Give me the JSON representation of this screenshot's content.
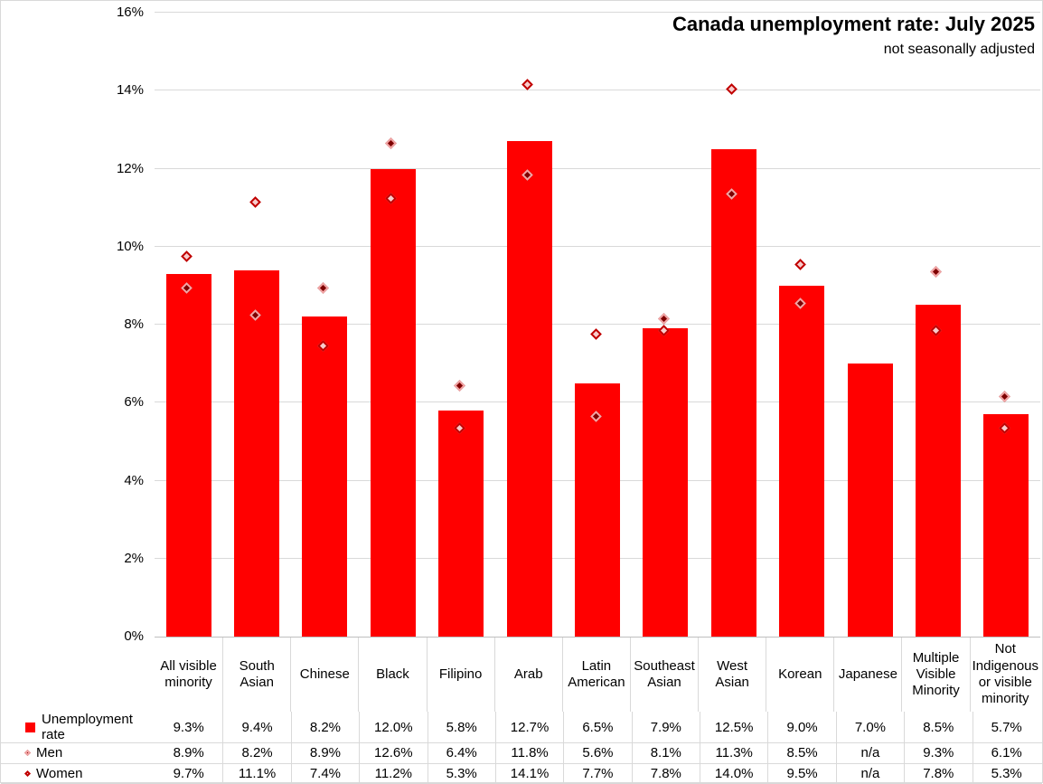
{
  "title": "Canada unemployment rate: July 2025",
  "subtitle": "not seasonally adjusted",
  "na_label": "n/a",
  "colors": {
    "bar": "#ff0000",
    "men_fill": "#7e0000",
    "men_border": "#f2a5a5",
    "women_fill": "#f8cccc",
    "women_border": "#c00000",
    "gridline": "#d9d9d9",
    "axis_line": "#bfbfbf",
    "text": "#000000"
  },
  "chart_data": {
    "type": "bar",
    "title": "Canada unemployment rate: July 2025",
    "subtitle": "not seasonally adjusted",
    "xlabel": "",
    "ylabel": "",
    "ylim": [
      0,
      16
    ],
    "ytick_step": 2,
    "ytick_labels": [
      "0%",
      "2%",
      "4%",
      "6%",
      "8%",
      "10%",
      "12%",
      "14%",
      "16%"
    ],
    "grid": true,
    "legend_position": "bottom-left-table",
    "categories": [
      "All visible minority",
      "South Asian",
      "Chinese",
      "Black",
      "Filipino",
      "Arab",
      "Latin American",
      "Southeast Asian",
      "West Asian",
      "Korean",
      "Japanese",
      "Multiple Visible Minority",
      "Not Indigenous or visible minority"
    ],
    "series": [
      {
        "name": "Unemployment rate",
        "type": "bar",
        "values": [
          9.3,
          9.4,
          8.2,
          12.0,
          5.8,
          12.7,
          6.5,
          7.9,
          12.5,
          9.0,
          7.0,
          8.5,
          5.7
        ]
      },
      {
        "name": "Men",
        "type": "scatter-diamond",
        "values": [
          8.9,
          8.2,
          8.9,
          12.6,
          6.4,
          11.8,
          5.6,
          8.1,
          11.3,
          8.5,
          null,
          9.3,
          6.1
        ]
      },
      {
        "name": "Women",
        "type": "scatter-diamond",
        "values": [
          9.7,
          11.1,
          7.4,
          11.2,
          5.3,
          14.1,
          7.7,
          7.8,
          14.0,
          9.5,
          null,
          7.8,
          5.3
        ]
      }
    ]
  }
}
